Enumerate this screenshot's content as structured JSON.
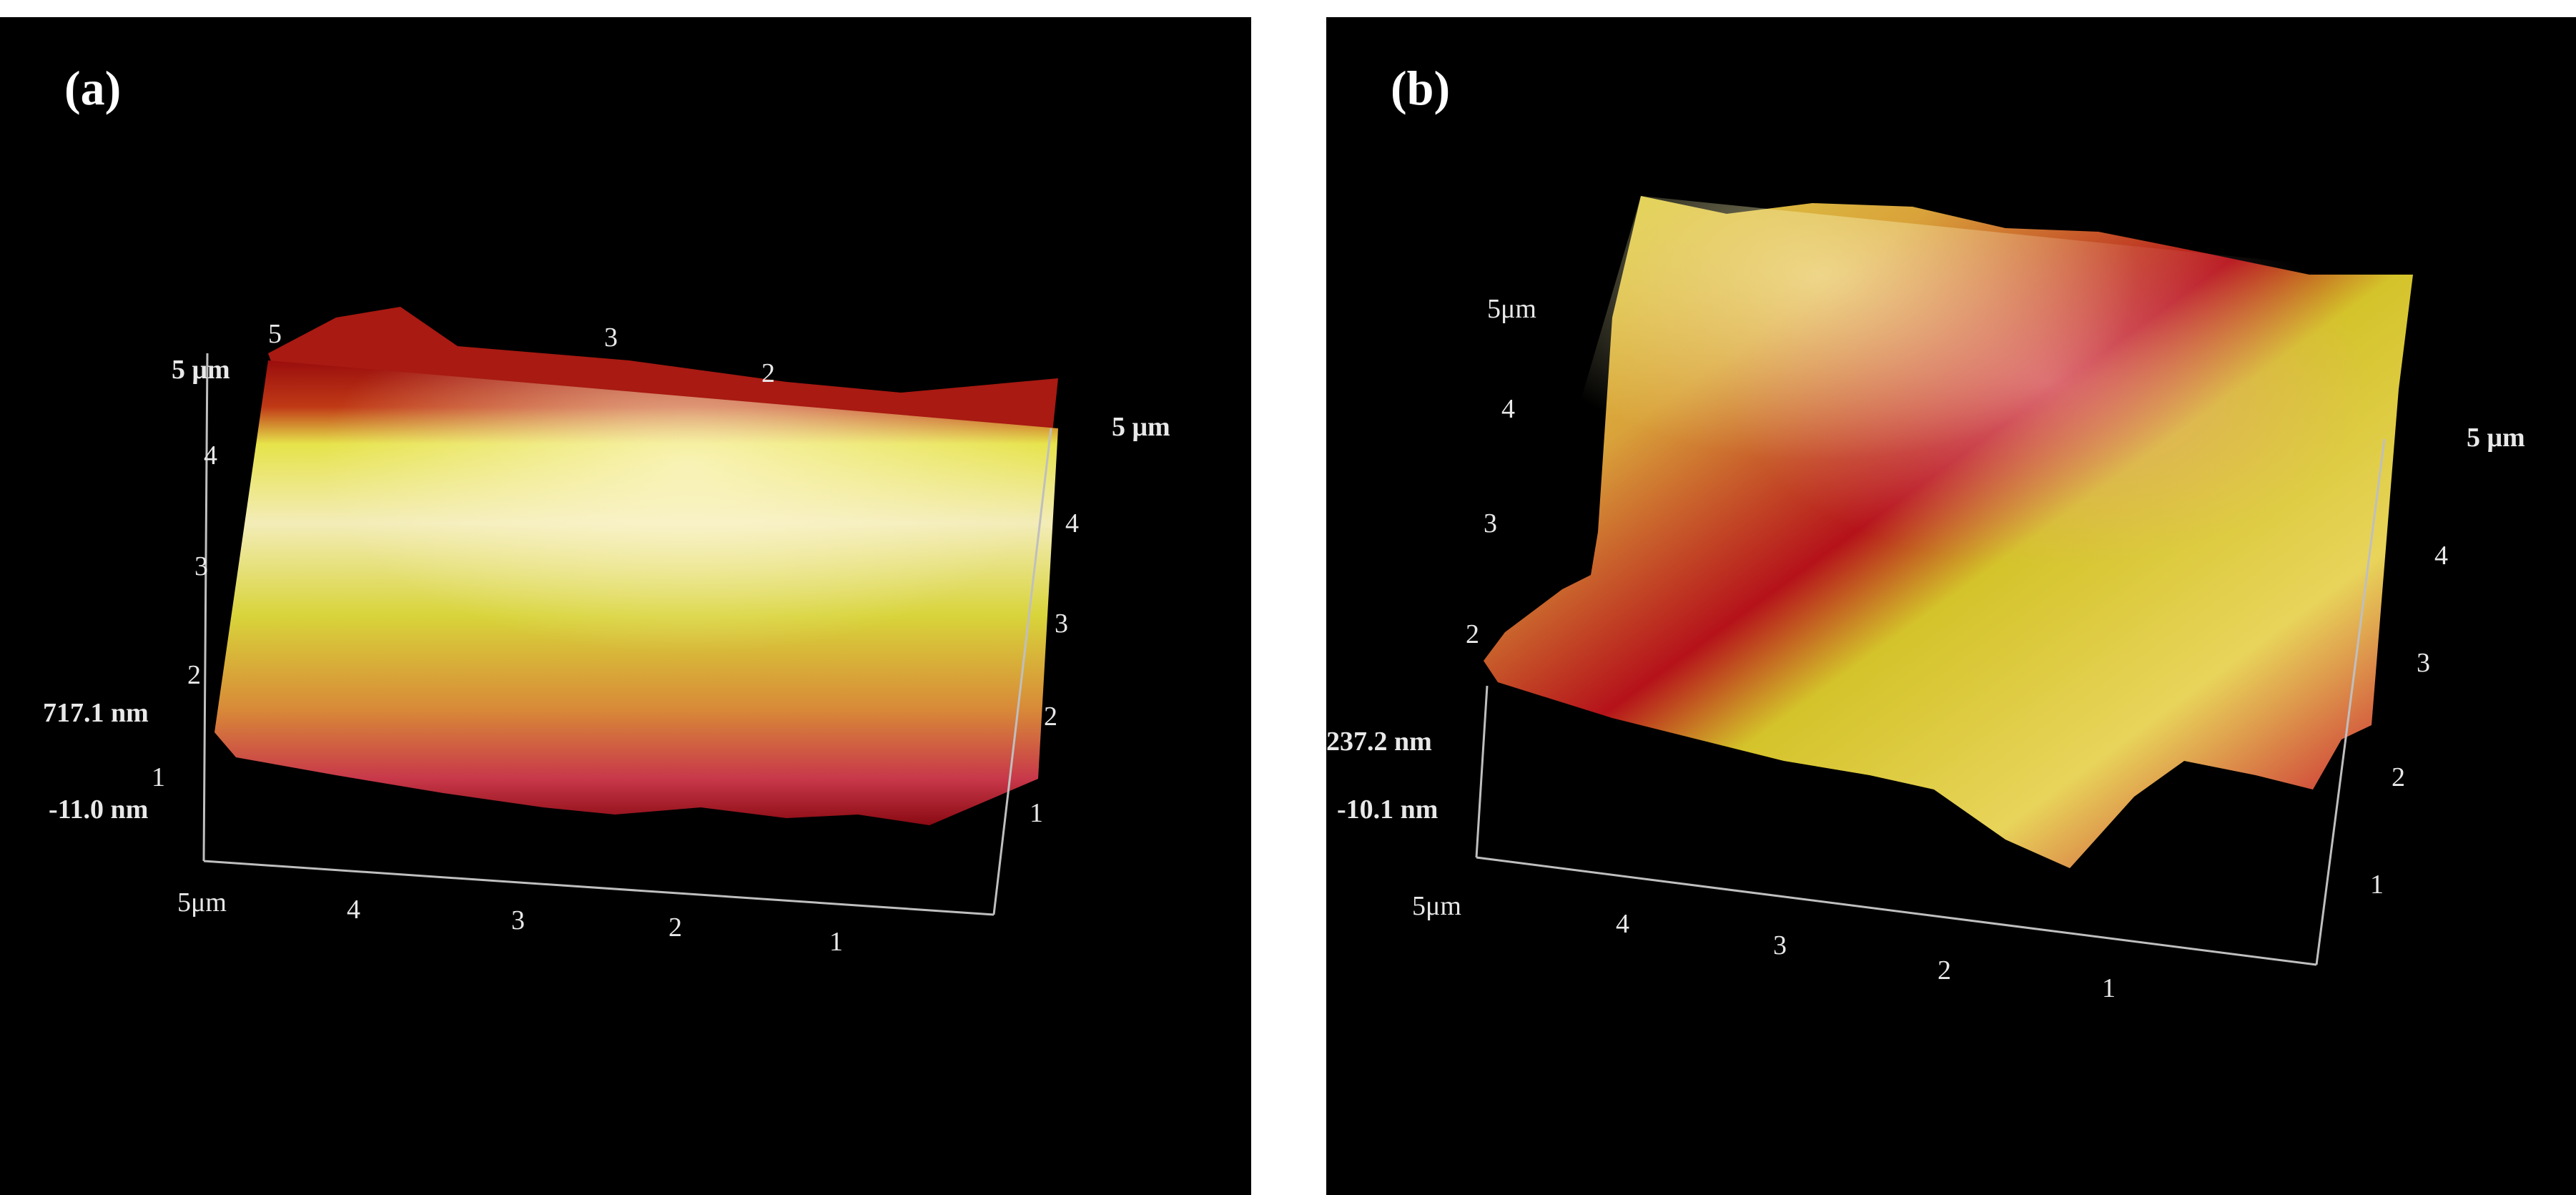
{
  "panels": [
    {
      "label": "(a)",
      "x_axis": {
        "ticks": [
          "5μm",
          "4",
          "3",
          "2",
          "1"
        ]
      },
      "y_axis": {
        "ticks": [
          "5 μm",
          "4",
          "3",
          "2",
          "1"
        ]
      },
      "back_axis": {
        "ticks": [
          "5",
          "3",
          "2"
        ]
      },
      "left_axis": {
        "ticks": [
          "5 μm",
          "4",
          "3",
          "2",
          "1"
        ]
      },
      "z_max": "717.1 nm",
      "z_min": "-11.0 nm"
    },
    {
      "label": "(b)",
      "x_axis": {
        "ticks": [
          "5μm",
          "4",
          "3",
          "2",
          "1"
        ]
      },
      "y_axis": {
        "ticks": [
          "5 μm",
          "4",
          "3",
          "2",
          "1"
        ]
      },
      "left_axis": {
        "ticks": [
          "5μm",
          "4",
          "3",
          "2"
        ]
      },
      "z_max": "237.2 nm",
      "z_min": "-10.1 nm"
    }
  ],
  "colors": {
    "background": "#000000",
    "surface_low": "#8b0a0a",
    "surface_mid": "#d4c51e",
    "surface_high": "#f2eab0"
  }
}
